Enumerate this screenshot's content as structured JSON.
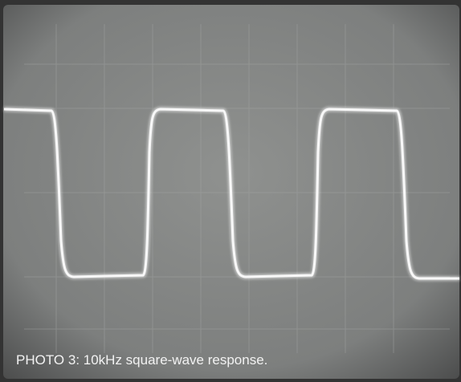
{
  "caption": "PHOTO 3: 10kHz square-wave response."
}
